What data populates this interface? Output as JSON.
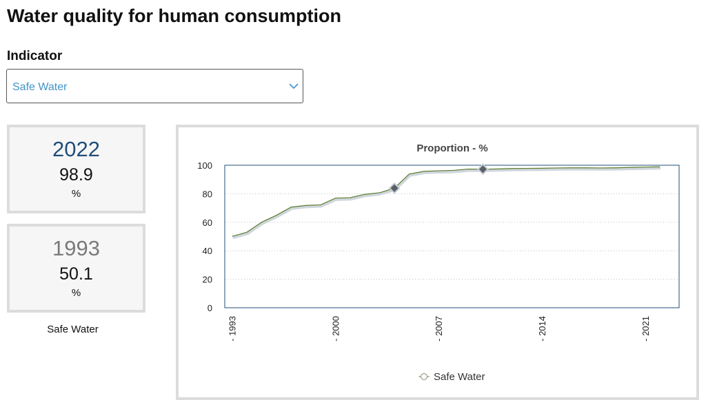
{
  "page": {
    "title": "Water quality for human consumption"
  },
  "filter": {
    "label": "Indicator",
    "selected": "Safe Water"
  },
  "stats": {
    "latest": {
      "year": "2022",
      "value": "98.9",
      "unit": "%"
    },
    "earliest": {
      "year": "1993",
      "value": "50.1",
      "unit": "%"
    },
    "indicator_name": "Safe Water"
  },
  "colors": {
    "line": "#5a7a2b",
    "frame": "#1f4e79",
    "marker": "#5b6068",
    "accent_latest_year": "#1f4e79",
    "select_text": "#3f94c8"
  },
  "icons": {
    "select_chevron": "chevron-down-icon",
    "legend": "circle-line-icon",
    "marker": "diamond-icon"
  },
  "chart_data": {
    "type": "line",
    "title": "Proportion - %",
    "xlabel": "",
    "ylabel": "",
    "x_ticks": [
      1993,
      2000,
      2007,
      2014,
      2021
    ],
    "x_tick_labels": [
      "- 1993",
      "- 2000",
      "- 2007",
      "- 2014",
      "- 2021"
    ],
    "y_ticks": [
      0,
      20,
      40,
      60,
      80,
      100
    ],
    "xlim": [
      1992.5,
      2023.3
    ],
    "ylim": [
      0,
      100
    ],
    "grid": true,
    "legend_position": "bottom-center",
    "series": [
      {
        "name": "Safe Water",
        "x": [
          1993,
          1994,
          1995,
          1996,
          1997,
          1998,
          1999,
          2000,
          2001,
          2002,
          2003,
          2004,
          2005,
          2006,
          2007,
          2008,
          2009,
          2010,
          2011,
          2012,
          2013,
          2014,
          2015,
          2016,
          2017,
          2018,
          2019,
          2020,
          2021,
          2022
        ],
        "y": [
          50.1,
          53,
          60,
          64.9,
          70.6,
          71.8,
          72.2,
          76.9,
          77.2,
          79.6,
          80.7,
          83.9,
          93.8,
          95.7,
          96.1,
          96.4,
          97.3,
          97.2,
          97.4,
          97.7,
          97.8,
          97.9,
          98.1,
          98.2,
          98.2,
          98.1,
          98.2,
          98.5,
          98.7,
          98.9
        ],
        "highlighted_x": [
          2004,
          2010
        ]
      }
    ]
  }
}
